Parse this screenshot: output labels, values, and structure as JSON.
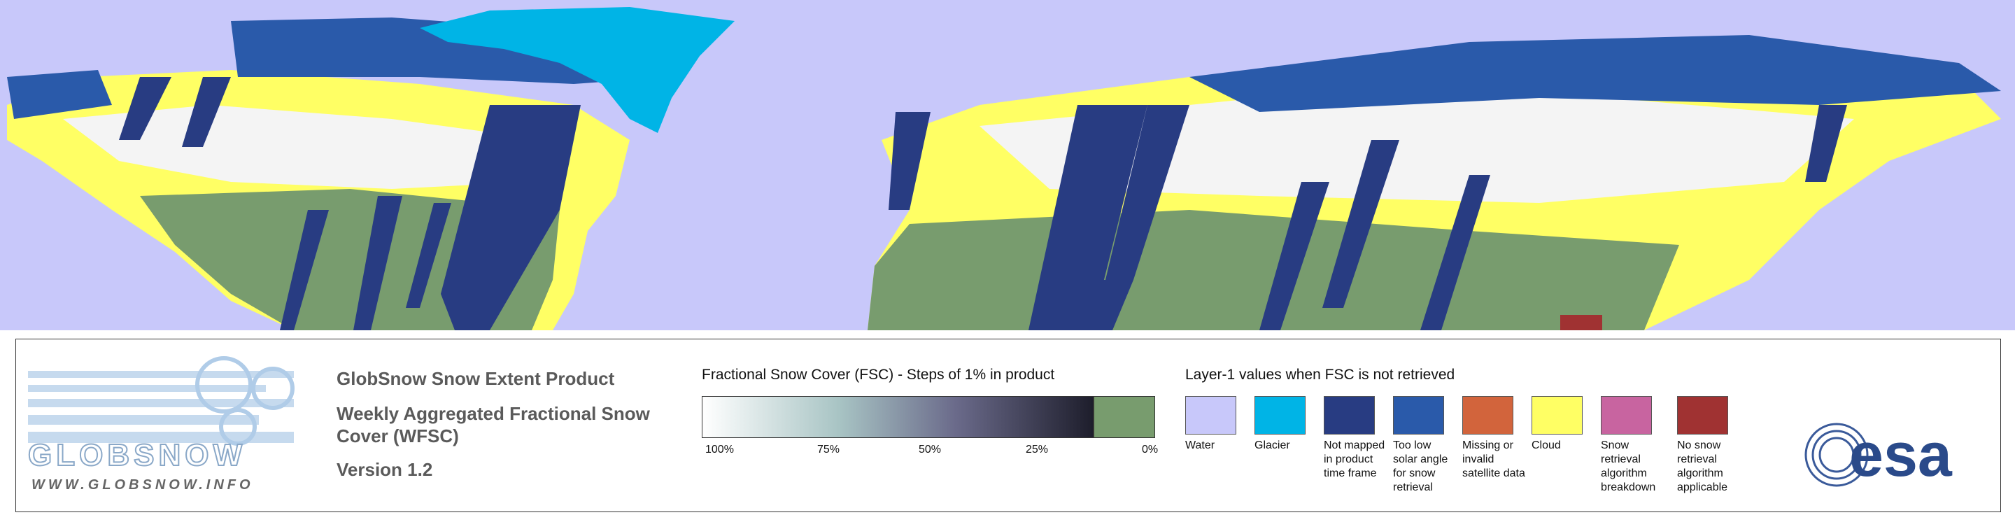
{
  "logo": {
    "name": "GLOBSNOW",
    "url": "WWW.GLOBSNOW.INFO"
  },
  "product": {
    "title": "GlobSnow Snow Extent Product",
    "subtitle": "Weekly Aggregated Fractional Snow Cover (WFSC)",
    "version": "Version 1.2"
  },
  "fsc_legend": {
    "title": "Fractional Snow Cover (FSC) - Steps of 1% in product",
    "labels": [
      "100%",
      "75%",
      "50%",
      "25%",
      "0%"
    ]
  },
  "layer1_legend": {
    "title": "Layer-1 values when FSC is not retrieved",
    "classes": [
      {
        "label": "Water",
        "color": "#c8c8fa"
      },
      {
        "label": "Glacier",
        "color": "#00b4e6"
      },
      {
        "label": "Not mapped in product time frame",
        "color": "#283c82"
      },
      {
        "label": "Too low solar angle for snow retrieval",
        "color": "#2a5aaa"
      },
      {
        "label": "Missing or invalid satellite data",
        "color": "#d2643c"
      },
      {
        "label": "Cloud",
        "color": "#ffff64"
      },
      {
        "label": "Snow retrieval algorithm breakdown",
        "color": "#c864a0"
      },
      {
        "label": "No snow retrieval algorithm applicable",
        "color": "#a03232"
      }
    ]
  },
  "agency": "esa"
}
